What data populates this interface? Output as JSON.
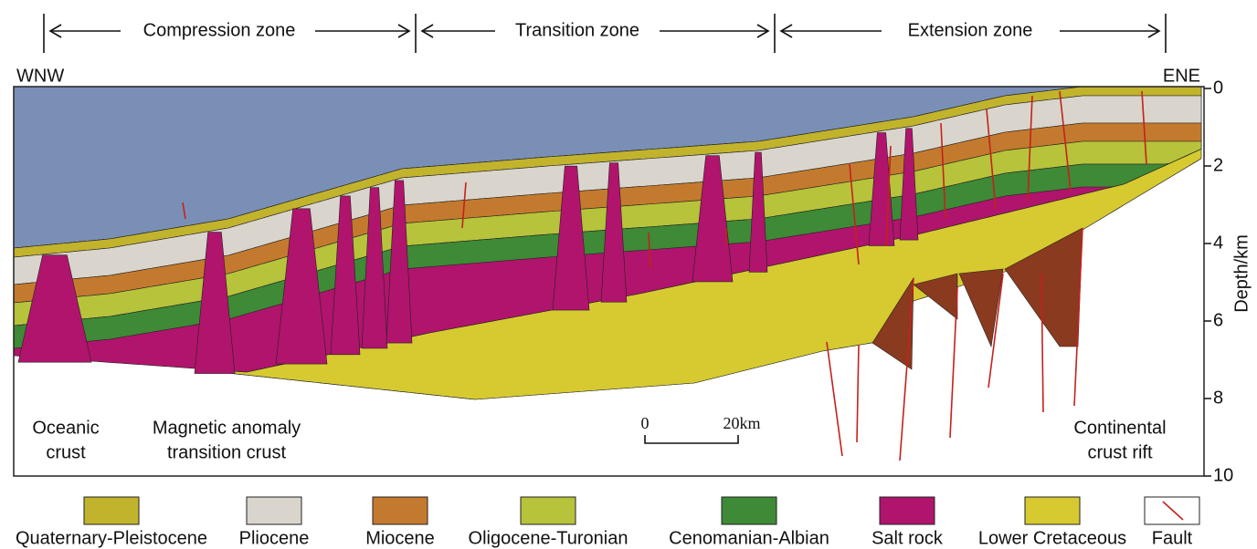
{
  "zones": [
    "Compression zone",
    "Transition zone",
    "Extension zone"
  ],
  "direction": {
    "left": "WNW",
    "right": "ENE"
  },
  "depth_axis": {
    "label": "Depth/km",
    "ticks": [
      0,
      2,
      4,
      6,
      8,
      10
    ]
  },
  "annotations": [
    {
      "lines": [
        "Oceanic",
        "crust"
      ]
    },
    {
      "lines": [
        "Magnetic anomaly",
        "transition crust"
      ]
    },
    {
      "lines": [
        "Continental",
        "crust rift"
      ]
    }
  ],
  "scale_bar": {
    "start": "0",
    "end": "20km"
  },
  "legend": [
    {
      "label": "Quaternary-Pleistocene",
      "color": "#c2b32c"
    },
    {
      "label": "Pliocene",
      "color": "#d9d5cc"
    },
    {
      "label": "Miocene",
      "color": "#c47a2e"
    },
    {
      "label": "Oligocene-Turonian",
      "color": "#b7c33a"
    },
    {
      "label": "Cenomanian-Albian",
      "color": "#3e8a36"
    },
    {
      "label": "Salt rock",
      "color": "#b0146c"
    },
    {
      "label": "Lower Cretaceous",
      "color": "#d6ca30"
    },
    {
      "label": "Fault",
      "color": "#ffffff"
    }
  ]
}
